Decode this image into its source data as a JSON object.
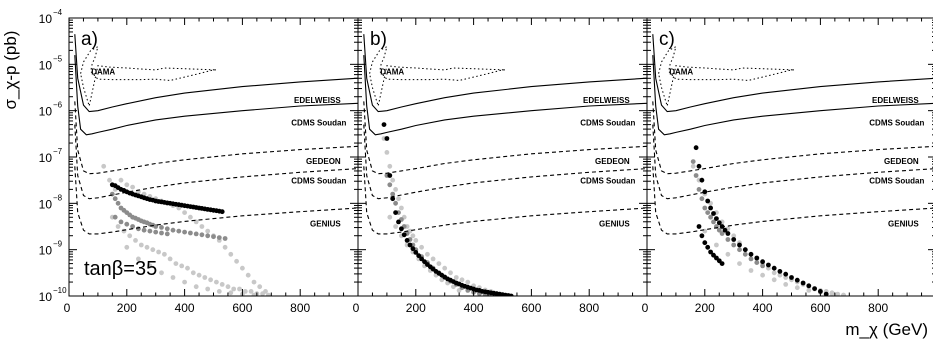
{
  "chart_data": {
    "type": "scatter",
    "xlabel": "m_χ (GeV)",
    "ylabel": "σ_χ-p (pb)",
    "x_axis": {
      "min": 0,
      "max": 1000,
      "ticks": [
        0,
        200,
        400,
        600,
        800
      ],
      "tick_labels": [
        "0",
        "200",
        "400",
        "600",
        "800"
      ]
    },
    "y_axis": {
      "scale": "log",
      "min": 1e-10,
      "max": 0.0001,
      "ticks": [
        -10,
        -9,
        -8,
        -7,
        -6,
        -5,
        -4
      ],
      "tick_labels": [
        "10",
        "10",
        "10",
        "10",
        "10",
        "10",
        "10"
      ],
      "tick_exponents": [
        "−10",
        "−9",
        "−8",
        "−7",
        "−6",
        "−5",
        "−4"
      ]
    },
    "grid": false,
    "annotation": "tanβ=35",
    "curve_labels": {
      "dama": "DAMA",
      "edelweiss": "EDELWEISS",
      "cdms_soudan_1": "CDMS Soudan",
      "gedeon": "GEDEON",
      "cdms_soudan_2": "CDMS Soudan",
      "genius": "GENIUS"
    },
    "exclusion_curves": [
      {
        "id": "edelweiss",
        "style": "solid",
        "x": [
          20,
          30,
          50,
          70,
          100,
          150,
          200,
          300,
          400,
          600,
          800,
          1000
        ],
        "log10y": [
          -4.35,
          -5.3,
          -5.88,
          -6.02,
          -6.0,
          -5.92,
          -5.85,
          -5.72,
          -5.62,
          -5.48,
          -5.38,
          -5.3
        ]
      },
      {
        "id": "cdms_soudan_1",
        "style": "solid",
        "x": [
          20,
          30,
          40,
          60,
          80,
          100,
          150,
          200,
          300,
          400,
          600,
          800,
          1000
        ],
        "log10y": [
          -4.8,
          -5.9,
          -6.4,
          -6.52,
          -6.5,
          -6.47,
          -6.4,
          -6.32,
          -6.2,
          -6.12,
          -6.0,
          -5.9,
          -5.84
        ]
      },
      {
        "id": "gedeon",
        "style": "dashed",
        "x": [
          20,
          30,
          50,
          70,
          100,
          150,
          200,
          300,
          400,
          600,
          800,
          1000
        ],
        "log10y": [
          -5.8,
          -6.85,
          -7.3,
          -7.36,
          -7.35,
          -7.3,
          -7.25,
          -7.14,
          -7.06,
          -6.93,
          -6.84,
          -6.77
        ]
      },
      {
        "id": "cdms_soudan_2",
        "style": "dashed",
        "x": [
          20,
          30,
          50,
          70,
          100,
          150,
          200,
          300,
          400,
          600,
          800,
          1000
        ],
        "log10y": [
          -6.3,
          -7.4,
          -7.83,
          -7.9,
          -7.88,
          -7.82,
          -7.76,
          -7.65,
          -7.56,
          -7.43,
          -7.33,
          -7.25
        ]
      },
      {
        "id": "genius",
        "style": "dashed",
        "x": [
          20,
          30,
          50,
          70,
          100,
          150,
          200,
          300,
          400,
          600,
          800,
          1000
        ],
        "log10y": [
          -7.2,
          -8.2,
          -8.58,
          -8.66,
          -8.66,
          -8.62,
          -8.57,
          -8.47,
          -8.39,
          -8.27,
          -8.18,
          -8.1
        ]
      }
    ],
    "dama_region": {
      "style": "dotted",
      "x": [
        40,
        50,
        75,
        100,
        90,
        80,
        75,
        100,
        150,
        200,
        250,
        300,
        350,
        450,
        500,
        510,
        330,
        300,
        250,
        200,
        140,
        100,
        70,
        50,
        40
      ],
      "log10y": [
        -5.2,
        -4.95,
        -4.7,
        -4.62,
        -4.85,
        -5.0,
        -5.15,
        -5.32,
        -5.33,
        -5.33,
        -5.33,
        -5.32,
        -5.35,
        -5.2,
        -5.12,
        -5.12,
        -5.08,
        -5.12,
        -5.1,
        -5.08,
        -5.06,
        -5.03,
        -5.9,
        -5.5,
        -5.2
      ]
    },
    "panels": [
      {
        "label": "a)",
        "series": [
          {
            "name": "",
            "color": "#c8c8c8",
            "x": [
              180,
              200,
              220,
              240,
              260,
              280,
              300,
              320,
              340,
              360,
              380,
              400,
              420,
              440,
              460,
              480,
              500,
              520,
              540,
              560,
              580,
              600,
              620,
              640,
              660,
              680,
              150,
              170,
              190,
              210,
              230,
              250,
              270,
              290,
              310,
              330,
              350,
              370,
              390,
              410,
              430,
              450,
              470,
              490,
              510,
              530,
              550,
              570,
              590,
              610,
              630,
              650,
              670,
              690,
              120,
              140,
              160,
              200,
              240,
              280,
              320,
              360,
              400,
              440,
              480,
              520,
              560,
              600,
              640
            ],
            "log10y": [
              -7.5,
              -7.6,
              -7.65,
              -7.75,
              -7.8,
              -7.85,
              -7.9,
              -7.95,
              -8.0,
              -8.05,
              -8.1,
              -8.2,
              -8.3,
              -8.4,
              -8.5,
              -8.6,
              -8.7,
              -8.8,
              -8.95,
              -9.1,
              -9.25,
              -9.4,
              -9.55,
              -9.7,
              -9.8,
              -9.9,
              -8.3,
              -8.5,
              -8.6,
              -8.7,
              -8.8,
              -8.9,
              -8.95,
              -9.0,
              -9.05,
              -9.1,
              -9.2,
              -9.3,
              -9.35,
              -9.4,
              -9.5,
              -9.55,
              -9.6,
              -9.65,
              -9.7,
              -9.75,
              -9.8,
              -9.85,
              -9.85,
              -9.9,
              -9.9,
              -9.95,
              -9.95,
              -9.98,
              -7.2,
              -7.5,
              -7.7,
              -8.95,
              -9.2,
              -9.35,
              -9.5,
              -9.6,
              -9.7,
              -9.8,
              -9.85,
              -9.9,
              -9.93,
              -9.96,
              -9.98
            ]
          },
          {
            "name": "",
            "color": "#8c8c8c",
            "x": [
              150,
              160,
              170,
              180,
              190,
              200,
              210,
              220,
              230,
              240,
              250,
              260,
              270,
              280,
              290,
              300,
              320,
              340,
              360,
              380,
              400,
              420,
              440,
              460,
              480,
              500,
              520,
              540,
              160,
              180,
              200,
              220,
              240,
              260,
              280,
              300,
              320,
              340
            ],
            "log10y": [
              -7.8,
              -7.9,
              -8.0,
              -8.1,
              -8.15,
              -8.2,
              -8.25,
              -8.3,
              -8.32,
              -8.35,
              -8.38,
              -8.4,
              -8.42,
              -8.45,
              -8.47,
              -8.5,
              -8.52,
              -8.55,
              -8.58,
              -8.6,
              -8.62,
              -8.64,
              -8.66,
              -8.68,
              -8.7,
              -8.72,
              -8.74,
              -8.76,
              -8.3,
              -8.4,
              -8.45,
              -8.5,
              -8.55,
              -8.58,
              -8.6,
              -8.62,
              -8.64,
              -8.66
            ]
          },
          {
            "name": "",
            "color": "#000000",
            "x": [
              150,
              160,
              170,
              180,
              190,
              200,
              210,
              220,
              230,
              240,
              250,
              260,
              270,
              280,
              290,
              300,
              310,
              320,
              330,
              340,
              350,
              360,
              370,
              380,
              390,
              400,
              410,
              420,
              430,
              440,
              450,
              460,
              470,
              480,
              490,
              500,
              510,
              520,
              530
            ],
            "log10y": [
              -7.6,
              -7.62,
              -7.66,
              -7.7,
              -7.72,
              -7.75,
              -7.78,
              -7.8,
              -7.82,
              -7.84,
              -7.86,
              -7.88,
              -7.9,
              -7.92,
              -7.93,
              -7.95,
              -7.96,
              -7.97,
              -7.98,
              -7.99,
              -8.0,
              -8.01,
              -8.02,
              -8.03,
              -8.04,
              -8.05,
              -8.06,
              -8.07,
              -8.08,
              -8.09,
              -8.1,
              -8.11,
              -8.12,
              -8.13,
              -8.14,
              -8.15,
              -8.16,
              -8.17,
              -8.18
            ]
          }
        ]
      },
      {
        "label": "b)",
        "series": [
          {
            "name": "",
            "color": "#c8c8c8",
            "x": [
              90,
              100,
              110,
              120,
              130,
              140,
              150,
              160,
              170,
              180,
              190,
              200,
              220,
              240,
              260,
              280,
              300,
              320,
              340,
              360,
              380,
              400,
              420,
              440,
              460,
              480,
              500,
              110,
              130,
              150,
              170,
              190,
              210,
              230,
              250,
              270,
              290,
              310,
              330,
              350
            ],
            "log10y": [
              -6.6,
              -6.9,
              -7.2,
              -7.5,
              -7.7,
              -7.9,
              -8.1,
              -8.3,
              -8.5,
              -8.6,
              -8.7,
              -8.8,
              -8.95,
              -9.1,
              -9.2,
              -9.3,
              -9.4,
              -9.5,
              -9.6,
              -9.65,
              -9.7,
              -9.78,
              -9.82,
              -9.87,
              -9.9,
              -9.95,
              -9.98,
              -8.3,
              -8.5,
              -8.7,
              -8.9,
              -9.05,
              -9.2,
              -9.35,
              -9.45,
              -9.55,
              -9.65,
              -9.72,
              -9.8,
              -9.88
            ]
          },
          {
            "name": "",
            "color": "#8c8c8c",
            "x": [
              100,
              110,
              120,
              130,
              140,
              150,
              160,
              170,
              180,
              190,
              200,
              220,
              240,
              260,
              280,
              300,
              320,
              340,
              360,
              380,
              400,
              420,
              440,
              460
            ],
            "log10y": [
              -7.4,
              -7.6,
              -7.8,
              -8.0,
              -8.2,
              -8.35,
              -8.5,
              -8.65,
              -8.78,
              -8.9,
              -9.0,
              -9.15,
              -9.28,
              -9.4,
              -9.5,
              -9.6,
              -9.68,
              -9.75,
              -9.82,
              -9.88,
              -9.92,
              -9.95,
              -9.97,
              -9.99
            ]
          },
          {
            "name": "",
            "color": "#000000",
            "x": [
              90,
              100,
              110,
              120,
              130,
              140,
              150,
              160,
              170,
              180,
              190,
              200,
              210,
              220,
              230,
              240,
              250,
              260,
              270,
              280,
              290,
              300,
              310,
              320,
              330,
              340,
              350,
              360,
              370,
              380,
              390,
              400,
              410,
              420,
              430,
              440,
              450,
              460,
              470,
              480,
              490,
              500,
              510,
              520,
              530
            ],
            "log10y": [
              -6.3,
              -6.6,
              -7.4,
              -7.9,
              -8.2,
              -8.4,
              -8.55,
              -8.68,
              -8.8,
              -8.9,
              -8.98,
              -9.06,
              -9.13,
              -9.2,
              -9.26,
              -9.32,
              -9.37,
              -9.42,
              -9.47,
              -9.51,
              -9.55,
              -9.59,
              -9.63,
              -9.66,
              -9.69,
              -9.72,
              -9.74,
              -9.77,
              -9.79,
              -9.81,
              -9.83,
              -9.85,
              -9.87,
              -9.88,
              -9.9,
              -9.91,
              -9.92,
              -9.93,
              -9.94,
              -9.95,
              -9.96,
              -9.97,
              -9.98,
              -9.99,
              -10.0
            ]
          }
        ]
      },
      {
        "label": "c)",
        "series": [
          {
            "name": "",
            "color": "#c8c8c8",
            "x": [
              160,
              180,
              200,
              220,
              240,
              260,
              280,
              300,
              320,
              340,
              360,
              380,
              400,
              420,
              440,
              460,
              480,
              500,
              520,
              540,
              560,
              580,
              600,
              620,
              640,
              660,
              680,
              200,
              240,
              280,
              320,
              360,
              400,
              440,
              480,
              520,
              560,
              600,
              640,
              680
            ],
            "log10y": [
              -7.2,
              -7.5,
              -7.8,
              -8.0,
              -8.2,
              -8.4,
              -8.55,
              -8.7,
              -8.85,
              -9.0,
              -9.1,
              -9.2,
              -9.3,
              -9.4,
              -9.5,
              -9.55,
              -9.6,
              -9.65,
              -9.7,
              -9.75,
              -9.8,
              -9.85,
              -9.88,
              -9.9,
              -9.93,
              -9.96,
              -9.98,
              -8.6,
              -8.9,
              -9.1,
              -9.3,
              -9.45,
              -9.55,
              -9.65,
              -9.75,
              -9.82,
              -9.88,
              -9.92,
              -9.95,
              -9.98
            ]
          },
          {
            "name": "",
            "color": "#8c8c8c",
            "x": [
              160,
              170,
              180,
              190,
              200,
              210,
              220,
              230,
              240,
              250,
              260,
              280,
              300,
              320,
              340,
              360,
              380,
              400
            ],
            "log10y": [
              -7.1,
              -7.4,
              -7.7,
              -7.9,
              -8.1,
              -8.2,
              -8.3,
              -8.4,
              -8.5,
              -8.58,
              -8.65,
              -8.78,
              -8.9,
              -9.0,
              -9.1,
              -9.2,
              -9.28,
              -9.35
            ]
          },
          {
            "name": "",
            "color": "#000000",
            "x": [
              170,
              180,
              190,
              200,
              210,
              220,
              230,
              240,
              250,
              260,
              270,
              280,
              300,
              320,
              340,
              360,
              380,
              400,
              420,
              440,
              460,
              480,
              500,
              520,
              540,
              560,
              580,
              600,
              620,
              180,
              190,
              200,
              210,
              220,
              230,
              240,
              250,
              260
            ],
            "log10y": [
              -6.8,
              -7.2,
              -7.5,
              -7.75,
              -7.95,
              -8.1,
              -8.22,
              -8.33,
              -8.42,
              -8.5,
              -8.58,
              -8.65,
              -8.78,
              -8.9,
              -9.0,
              -9.1,
              -9.18,
              -9.26,
              -9.33,
              -9.4,
              -9.47,
              -9.53,
              -9.6,
              -9.66,
              -9.72,
              -9.78,
              -9.84,
              -9.9,
              -9.96,
              -8.5,
              -8.7,
              -8.85,
              -8.95,
              -9.05,
              -9.12,
              -9.18,
              -9.24,
              -9.3
            ]
          }
        ]
      }
    ]
  }
}
